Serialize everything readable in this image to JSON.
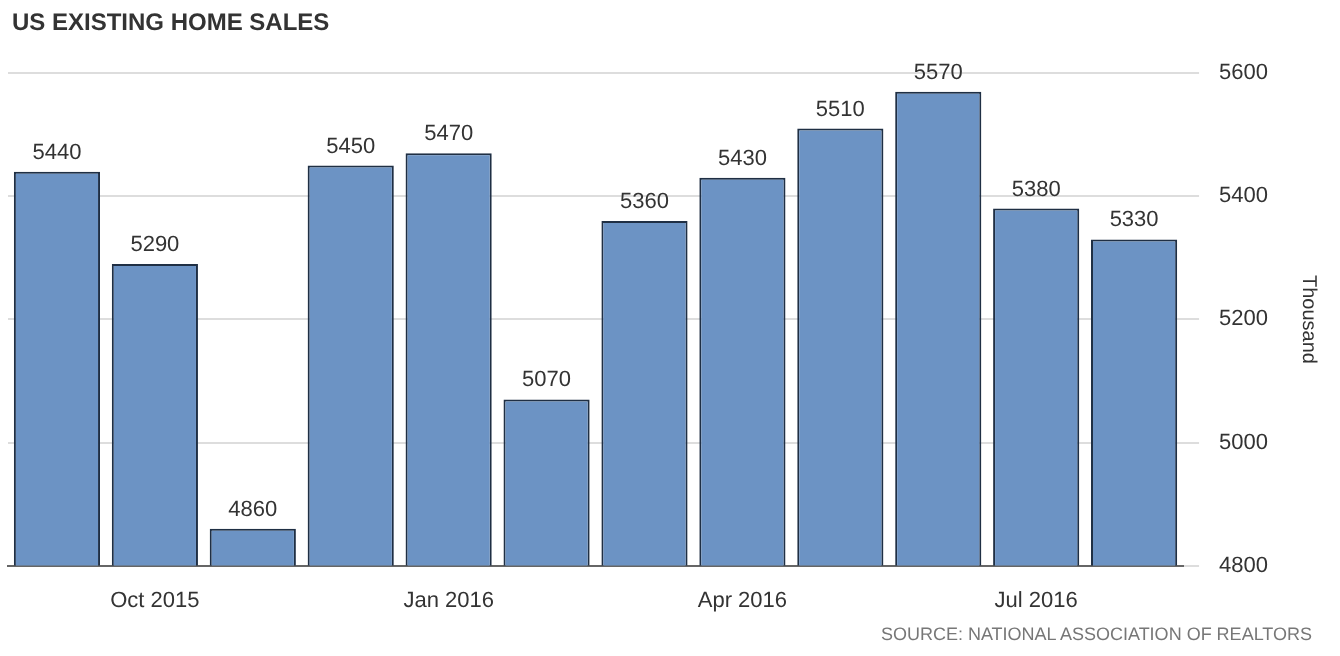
{
  "chart_data": {
    "type": "bar",
    "title": "US EXISTING HOME SALES",
    "ylabel": "Thousand",
    "categories": [
      null,
      "Oct 2015",
      null,
      null,
      "Jan 2016",
      null,
      null,
      "Apr 2016",
      null,
      null,
      "Jul 2016",
      null
    ],
    "values": [
      5440,
      5290,
      4860,
      5450,
      5470,
      5070,
      5360,
      5430,
      5510,
      5570,
      5380,
      5330
    ],
    "color": "#6c93c4",
    "ylim": [
      4800,
      5600
    ],
    "yticks": [
      4800,
      5000,
      5200,
      5400,
      5600
    ],
    "grid": "y",
    "data_labels": true,
    "annotations": [
      "SOURCE: NATIONAL ASSOCIATION OF REALTORS"
    ]
  }
}
